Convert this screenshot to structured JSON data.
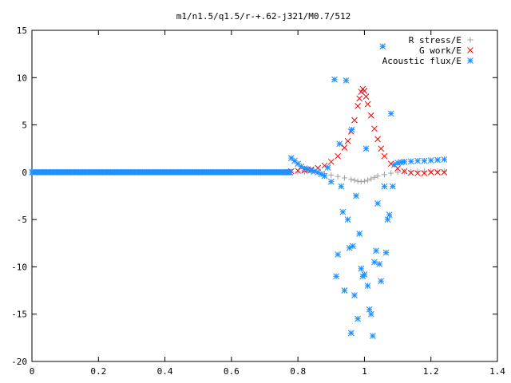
{
  "chart_data": {
    "type": "scatter",
    "title": "m1/n1.5/q1.5/r-+.62-j321/M0.7/512",
    "xlabel": "",
    "ylabel": "",
    "xlim": [
      0,
      1.4
    ],
    "ylim": [
      -20,
      15
    ],
    "x_ticks": [
      "0",
      "0.2",
      "0.4",
      "0.6",
      "0.8",
      "1",
      "1.2",
      "1.4"
    ],
    "y_ticks": [
      "15",
      "10",
      "5",
      "0",
      "-5",
      "-10",
      "-15",
      "-20"
    ],
    "grid": false,
    "legend_position": "top-right",
    "series": [
      {
        "name": "R stress/E",
        "marker": "plus",
        "color": "#a0a0a0",
        "points": [
          [
            0.78,
            0.05
          ],
          [
            0.8,
            0.04
          ],
          [
            0.82,
            0.03
          ],
          [
            0.84,
            0.0
          ],
          [
            0.86,
            -0.05
          ],
          [
            0.88,
            -0.15
          ],
          [
            0.9,
            -0.3
          ],
          [
            0.92,
            -0.45
          ],
          [
            0.94,
            -0.6
          ],
          [
            0.96,
            -0.75
          ],
          [
            0.97,
            -0.85
          ],
          [
            0.98,
            -0.95
          ],
          [
            0.99,
            -1.0
          ],
          [
            1.0,
            -0.95
          ],
          [
            1.01,
            -0.85
          ],
          [
            1.02,
            -0.7
          ],
          [
            1.03,
            -0.55
          ],
          [
            1.04,
            -0.4
          ],
          [
            1.06,
            -0.25
          ],
          [
            1.08,
            -0.1
          ],
          [
            1.1,
            0.0
          ],
          [
            1.12,
            0.05
          ],
          [
            1.14,
            0.08
          ],
          [
            1.16,
            0.1
          ],
          [
            1.18,
            0.1
          ],
          [
            1.2,
            0.1
          ],
          [
            1.22,
            0.1
          ],
          [
            1.24,
            0.1
          ]
        ]
      },
      {
        "name": "G work/E",
        "marker": "cross",
        "color": "#ff0000",
        "points": [
          [
            0.78,
            0.1
          ],
          [
            0.8,
            0.15
          ],
          [
            0.82,
            0.2
          ],
          [
            0.84,
            0.3
          ],
          [
            0.86,
            0.45
          ],
          [
            0.88,
            0.7
          ],
          [
            0.9,
            1.1
          ],
          [
            0.92,
            1.7
          ],
          [
            0.94,
            2.6
          ],
          [
            0.95,
            3.3
          ],
          [
            0.96,
            4.3
          ],
          [
            0.97,
            5.5
          ],
          [
            0.98,
            7.0
          ],
          [
            0.985,
            7.8
          ],
          [
            0.99,
            8.5
          ],
          [
            0.995,
            8.8
          ],
          [
            1.0,
            8.6
          ],
          [
            1.005,
            8.0
          ],
          [
            1.01,
            7.2
          ],
          [
            1.02,
            6.0
          ],
          [
            1.03,
            4.6
          ],
          [
            1.04,
            3.5
          ],
          [
            1.05,
            2.5
          ],
          [
            1.06,
            1.7
          ],
          [
            1.08,
            0.9
          ],
          [
            1.1,
            0.4
          ],
          [
            1.12,
            0.1
          ],
          [
            1.14,
            -0.05
          ],
          [
            1.16,
            -0.1
          ],
          [
            1.18,
            -0.1
          ],
          [
            1.2,
            0.0
          ],
          [
            1.22,
            0.0
          ],
          [
            1.24,
            0.0
          ]
        ]
      },
      {
        "name": "Acoustic flux/E",
        "marker": "star",
        "color": "#1e90ff",
        "points": [
          [
            0.78,
            1.5
          ],
          [
            0.79,
            1.2
          ],
          [
            0.8,
            0.9
          ],
          [
            0.81,
            0.6
          ],
          [
            0.82,
            0.4
          ],
          [
            0.83,
            0.3
          ],
          [
            0.84,
            0.2
          ],
          [
            0.85,
            0.1
          ],
          [
            0.86,
            0.0
          ],
          [
            0.87,
            -0.2
          ],
          [
            0.88,
            -0.4
          ],
          [
            0.89,
            0.5
          ],
          [
            0.9,
            -1.0
          ],
          [
            0.91,
            9.8
          ],
          [
            0.915,
            -11.0
          ],
          [
            0.92,
            -8.7
          ],
          [
            0.925,
            3.0
          ],
          [
            0.93,
            -1.5
          ],
          [
            0.935,
            -4.2
          ],
          [
            0.94,
            -12.5
          ],
          [
            0.945,
            9.7
          ],
          [
            0.95,
            -5.0
          ],
          [
            0.955,
            -8.0
          ],
          [
            0.96,
            -17.0
          ],
          [
            0.962,
            4.5
          ],
          [
            0.965,
            -7.8
          ],
          [
            0.97,
            -13.0
          ],
          [
            0.975,
            -2.5
          ],
          [
            0.98,
            -15.5
          ],
          [
            0.985,
            -6.5
          ],
          [
            0.99,
            -10.2
          ],
          [
            0.995,
            -11.0
          ],
          [
            1.0,
            -10.8
          ],
          [
            1.005,
            2.5
          ],
          [
            1.01,
            -12.0
          ],
          [
            1.015,
            -14.5
          ],
          [
            1.02,
            -15.0
          ],
          [
            1.025,
            -17.3
          ],
          [
            1.03,
            -9.5
          ],
          [
            1.035,
            -8.3
          ],
          [
            1.04,
            -3.3
          ],
          [
            1.045,
            -9.7
          ],
          [
            1.05,
            -11.5
          ],
          [
            1.055,
            13.3
          ],
          [
            1.06,
            -1.5
          ],
          [
            1.065,
            -8.5
          ],
          [
            1.07,
            -5.0
          ],
          [
            1.075,
            -4.5
          ],
          [
            1.08,
            6.2
          ],
          [
            1.085,
            -1.5
          ],
          [
            1.09,
            0.8
          ],
          [
            1.1,
            1.0
          ],
          [
            1.11,
            1.05
          ],
          [
            1.12,
            1.1
          ],
          [
            1.14,
            1.15
          ],
          [
            1.16,
            1.2
          ],
          [
            1.18,
            1.2
          ],
          [
            1.2,
            1.25
          ],
          [
            1.22,
            1.3
          ],
          [
            1.24,
            1.35
          ]
        ]
      }
    ]
  }
}
